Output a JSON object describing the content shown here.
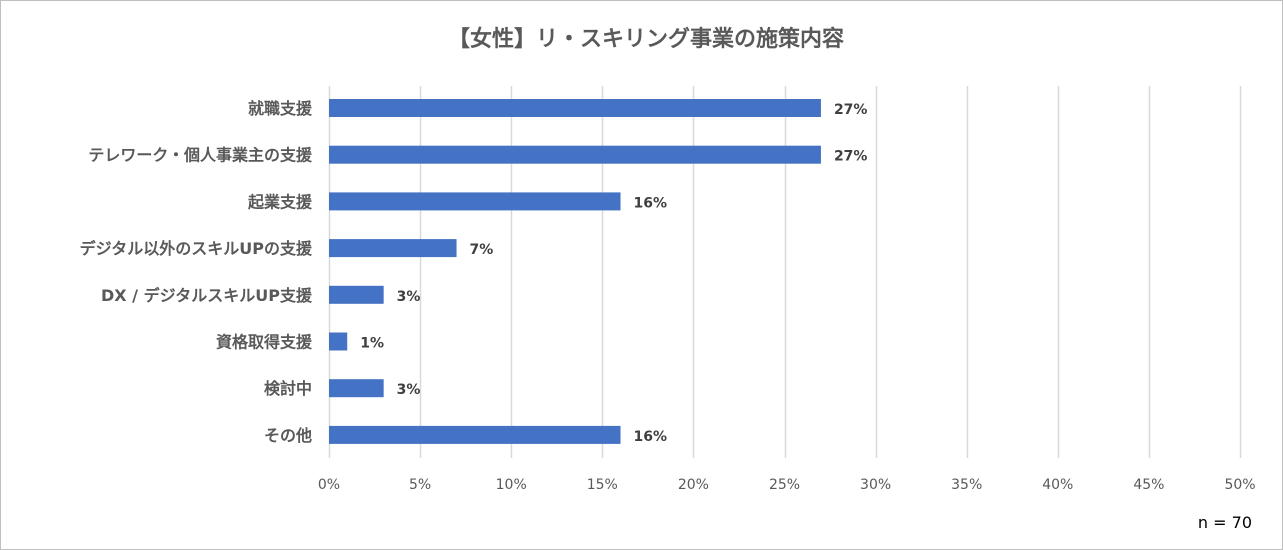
{
  "chart_data": {
    "type": "bar",
    "orientation": "horizontal",
    "title": "【女性】リ・スキリング事業の施策内容",
    "categories": [
      "就職支援",
      "テレワーク・個人事業主の支援",
      "起業支援",
      "デジタル以外のスキルUPの支援",
      "DX / デジタルスキルUP支援",
      "資格取得支援",
      "検討中",
      "その他"
    ],
    "values": [
      27,
      27,
      16,
      7,
      3,
      1,
      3,
      16
    ],
    "value_labels": [
      "27%",
      "27%",
      "16%",
      "7%",
      "3%",
      "1%",
      "3%",
      "16%"
    ],
    "xlim": [
      0,
      50
    ],
    "xticks": [
      0,
      5,
      10,
      15,
      20,
      25,
      30,
      35,
      40,
      45,
      50
    ],
    "xtick_labels": [
      "0%",
      "5%",
      "10%",
      "15%",
      "20%",
      "25%",
      "30%",
      "35%",
      "40%",
      "45%",
      "50%"
    ],
    "xlabel": "",
    "ylabel": "",
    "grid": true,
    "legend": "none",
    "bar_color": "#4472c4",
    "grid_color": "#d9d9d9",
    "note": "n = 70"
  }
}
